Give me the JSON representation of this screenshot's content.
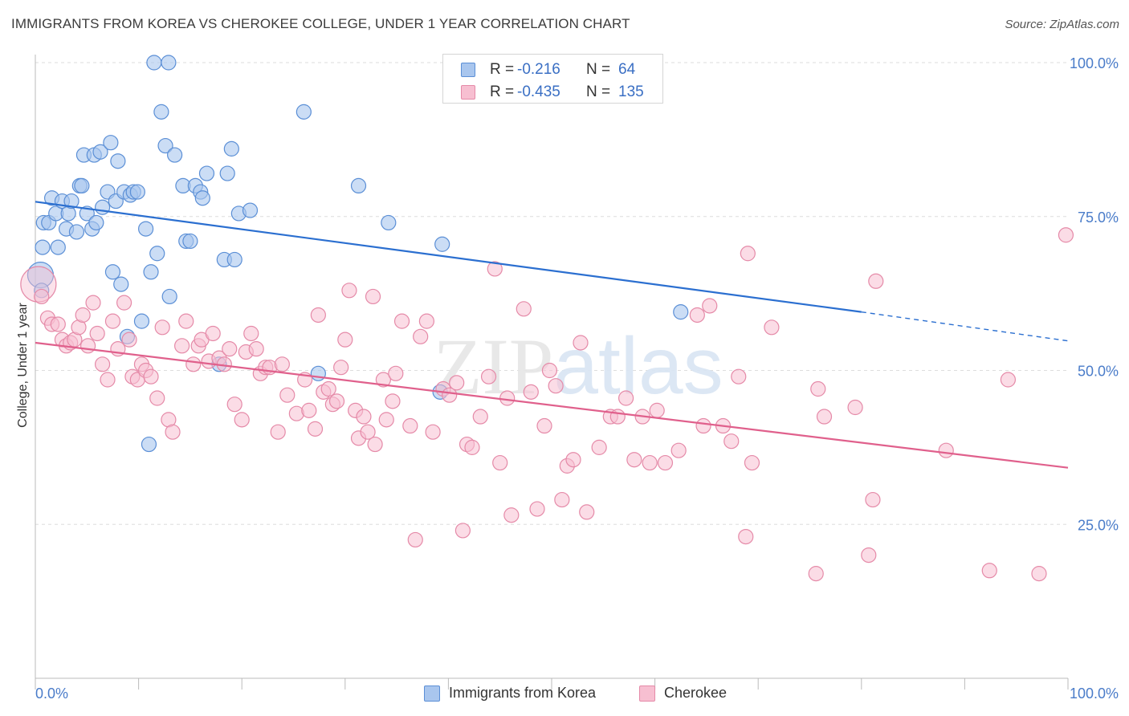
{
  "title": "IMMIGRANTS FROM KOREA VS CHEROKEE COLLEGE, UNDER 1 YEAR CORRELATION CHART",
  "source": "Source: ZipAtlas.com",
  "watermark": "ZIPatlas",
  "legend": {
    "rows": [
      {
        "r_label": "R =",
        "r_value": "-0.216",
        "n_label": "N =",
        "n_value": "64"
      },
      {
        "r_label": "R =",
        "r_value": "-0.435",
        "n_label": "N =",
        "n_value": "135"
      }
    ]
  },
  "bottom_legend": [
    "Immigrants from Korea",
    "Cherokee"
  ],
  "chart_data": {
    "type": "scatter",
    "title": "IMMIGRANTS FROM KOREA VS CHEROKEE COLLEGE, UNDER 1 YEAR CORRELATION CHART",
    "xlabel": "",
    "ylabel": "College, Under 1 year",
    "xlim": [
      0,
      100
    ],
    "ylim": [
      0,
      100
    ],
    "x_tick_labels": [
      "0.0%",
      "100.0%"
    ],
    "y_tick_labels": [
      "100.0%",
      "75.0%",
      "50.0%",
      "25.0%"
    ],
    "y_tick_values": [
      100,
      75,
      50,
      25
    ],
    "grid": true,
    "legend_position": "top-center",
    "colors": {
      "korea_fill": "#a9c6ee",
      "korea_stroke": "#5b8fd6",
      "korea_line": "#2b6fd0",
      "cherokee_fill": "#f7bfd1",
      "cherokee_stroke": "#e58aa8",
      "cherokee_line": "#e0608c",
      "grid": "#dddddd",
      "tick_label": "#4a7cc9"
    },
    "series": [
      {
        "name": "Immigrants from Korea",
        "trend": {
          "x0": 0,
          "y0": 77.4,
          "x1": 80,
          "y1": 59.5,
          "dash_to_x": 100,
          "dash_to_y": 54.8
        },
        "points": [
          [
            0.5,
            65.5
          ],
          [
            0.6,
            63.0
          ],
          [
            0.7,
            70.0
          ],
          [
            0.8,
            74.0
          ],
          [
            1.3,
            74.0
          ],
          [
            1.6,
            78.0
          ],
          [
            2.0,
            75.5
          ],
          [
            2.2,
            70.0
          ],
          [
            2.6,
            77.5
          ],
          [
            3.0,
            73.0
          ],
          [
            3.2,
            75.5
          ],
          [
            3.5,
            77.5
          ],
          [
            4.0,
            72.5
          ],
          [
            4.3,
            80.0
          ],
          [
            4.5,
            80.0
          ],
          [
            4.7,
            85.0
          ],
          [
            5.0,
            75.5
          ],
          [
            5.5,
            73.0
          ],
          [
            5.7,
            85.0
          ],
          [
            5.9,
            74.0
          ],
          [
            6.3,
            85.5
          ],
          [
            6.5,
            76.5
          ],
          [
            7.0,
            79.0
          ],
          [
            7.3,
            87.0
          ],
          [
            7.5,
            66.0
          ],
          [
            7.8,
            77.5
          ],
          [
            8.0,
            84.0
          ],
          [
            8.3,
            64.0
          ],
          [
            8.6,
            79.0
          ],
          [
            8.9,
            55.5
          ],
          [
            9.2,
            78.5
          ],
          [
            9.5,
            79.0
          ],
          [
            9.9,
            79.0
          ],
          [
            10.3,
            58.0
          ],
          [
            10.7,
            73.0
          ],
          [
            11.0,
            38.0
          ],
          [
            11.2,
            66.0
          ],
          [
            11.5,
            100.0
          ],
          [
            11.8,
            69.0
          ],
          [
            12.2,
            92.0
          ],
          [
            12.9,
            100.0
          ],
          [
            12.6,
            86.5
          ],
          [
            13.0,
            62.0
          ],
          [
            13.5,
            85.0
          ],
          [
            14.3,
            80.0
          ],
          [
            14.6,
            71.0
          ],
          [
            15.0,
            71.0
          ],
          [
            15.5,
            80.0
          ],
          [
            16.0,
            79.0
          ],
          [
            16.2,
            78.0
          ],
          [
            16.6,
            82.0
          ],
          [
            17.8,
            51.0
          ],
          [
            18.3,
            68.0
          ],
          [
            18.6,
            82.0
          ],
          [
            19.0,
            86.0
          ],
          [
            19.3,
            68.0
          ],
          [
            19.7,
            75.5
          ],
          [
            20.8,
            76.0
          ],
          [
            26.0,
            92.0
          ],
          [
            27.4,
            49.5
          ],
          [
            31.3,
            80.0
          ],
          [
            34.2,
            74.0
          ],
          [
            39.2,
            46.5
          ],
          [
            39.4,
            70.5
          ],
          [
            62.5,
            59.5
          ]
        ]
      },
      {
        "name": "Cherokee",
        "trend": {
          "x0": 0,
          "y0": 54.5,
          "x1": 100,
          "y1": 34.2
        },
        "points": [
          [
            0.3,
            64.0
          ],
          [
            0.6,
            62.0
          ],
          [
            1.2,
            58.5
          ],
          [
            1.6,
            57.5
          ],
          [
            2.2,
            57.5
          ],
          [
            2.6,
            55.0
          ],
          [
            3.0,
            54.0
          ],
          [
            3.4,
            54.5
          ],
          [
            3.8,
            55.0
          ],
          [
            4.2,
            57.0
          ],
          [
            4.6,
            59.0
          ],
          [
            5.1,
            54.0
          ],
          [
            5.6,
            61.0
          ],
          [
            6.0,
            56.0
          ],
          [
            6.5,
            51.0
          ],
          [
            7.0,
            48.5
          ],
          [
            7.5,
            58.0
          ],
          [
            8.0,
            53.5
          ],
          [
            8.6,
            61.0
          ],
          [
            9.1,
            55.0
          ],
          [
            9.4,
            49.0
          ],
          [
            9.9,
            48.5
          ],
          [
            10.3,
            51.0
          ],
          [
            10.7,
            50.0
          ],
          [
            11.2,
            49.0
          ],
          [
            11.8,
            45.5
          ],
          [
            12.3,
            57.0
          ],
          [
            12.9,
            42.0
          ],
          [
            13.3,
            40.0
          ],
          [
            14.2,
            54.0
          ],
          [
            14.6,
            58.0
          ],
          [
            15.3,
            51.0
          ],
          [
            15.8,
            54.0
          ],
          [
            16.1,
            55.0
          ],
          [
            16.8,
            51.5
          ],
          [
            17.2,
            56.0
          ],
          [
            17.8,
            52.0
          ],
          [
            18.3,
            51.0
          ],
          [
            18.8,
            53.5
          ],
          [
            19.3,
            44.5
          ],
          [
            20.0,
            42.0
          ],
          [
            20.4,
            53.0
          ],
          [
            20.9,
            56.0
          ],
          [
            21.4,
            53.5
          ],
          [
            21.8,
            49.5
          ],
          [
            22.3,
            50.5
          ],
          [
            22.7,
            50.5
          ],
          [
            23.5,
            40.0
          ],
          [
            23.9,
            51.0
          ],
          [
            24.4,
            46.0
          ],
          [
            25.3,
            43.0
          ],
          [
            26.1,
            48.5
          ],
          [
            26.5,
            43.5
          ],
          [
            27.1,
            40.5
          ],
          [
            27.4,
            59.0
          ],
          [
            27.9,
            46.5
          ],
          [
            28.4,
            47.0
          ],
          [
            28.8,
            44.5
          ],
          [
            29.2,
            45.0
          ],
          [
            29.6,
            50.5
          ],
          [
            30.0,
            55.0
          ],
          [
            30.4,
            63.0
          ],
          [
            31.0,
            43.5
          ],
          [
            31.3,
            39.0
          ],
          [
            31.8,
            42.5
          ],
          [
            32.2,
            40.0
          ],
          [
            32.7,
            62.0
          ],
          [
            32.9,
            38.0
          ],
          [
            33.7,
            48.5
          ],
          [
            34.0,
            42.0
          ],
          [
            34.6,
            45.0
          ],
          [
            34.9,
            49.5
          ],
          [
            35.5,
            58.0
          ],
          [
            36.3,
            41.0
          ],
          [
            36.8,
            22.5
          ],
          [
            37.3,
            55.5
          ],
          [
            37.9,
            58.0
          ],
          [
            38.5,
            40.0
          ],
          [
            39.5,
            47.0
          ],
          [
            40.1,
            46.0
          ],
          [
            40.8,
            48.0
          ],
          [
            41.4,
            24.0
          ],
          [
            41.8,
            38.0
          ],
          [
            42.3,
            37.5
          ],
          [
            43.1,
            42.5
          ],
          [
            43.9,
            49.0
          ],
          [
            44.5,
            66.5
          ],
          [
            45.0,
            35.0
          ],
          [
            45.7,
            45.5
          ],
          [
            46.1,
            26.5
          ],
          [
            47.3,
            60.0
          ],
          [
            48.0,
            46.5
          ],
          [
            48.6,
            27.5
          ],
          [
            49.3,
            41.0
          ],
          [
            49.8,
            50.0
          ],
          [
            50.4,
            47.5
          ],
          [
            51.0,
            29.0
          ],
          [
            51.5,
            34.5
          ],
          [
            52.1,
            35.5
          ],
          [
            52.8,
            54.5
          ],
          [
            53.4,
            27.0
          ],
          [
            54.6,
            37.5
          ],
          [
            55.7,
            42.5
          ],
          [
            56.4,
            42.5
          ],
          [
            57.2,
            45.5
          ],
          [
            58.0,
            35.5
          ],
          [
            58.8,
            42.5
          ],
          [
            59.5,
            35.0
          ],
          [
            60.2,
            43.5
          ],
          [
            61.0,
            35.0
          ],
          [
            62.3,
            37.0
          ],
          [
            64.1,
            59.0
          ],
          [
            64.7,
            41.0
          ],
          [
            65.3,
            60.5
          ],
          [
            66.6,
            41.0
          ],
          [
            67.4,
            38.5
          ],
          [
            68.1,
            49.0
          ],
          [
            68.8,
            23.0
          ],
          [
            69.4,
            35.0
          ],
          [
            69.0,
            69.0
          ],
          [
            71.3,
            57.0
          ],
          [
            75.6,
            17.0
          ],
          [
            75.8,
            47.0
          ],
          [
            76.4,
            42.5
          ],
          [
            79.4,
            44.0
          ],
          [
            80.7,
            20.0
          ],
          [
            81.1,
            29.0
          ],
          [
            81.4,
            64.5
          ],
          [
            88.2,
            37.0
          ],
          [
            92.4,
            17.5
          ],
          [
            94.2,
            48.5
          ],
          [
            97.2,
            17.0
          ],
          [
            99.8,
            72.0
          ]
        ]
      }
    ]
  }
}
